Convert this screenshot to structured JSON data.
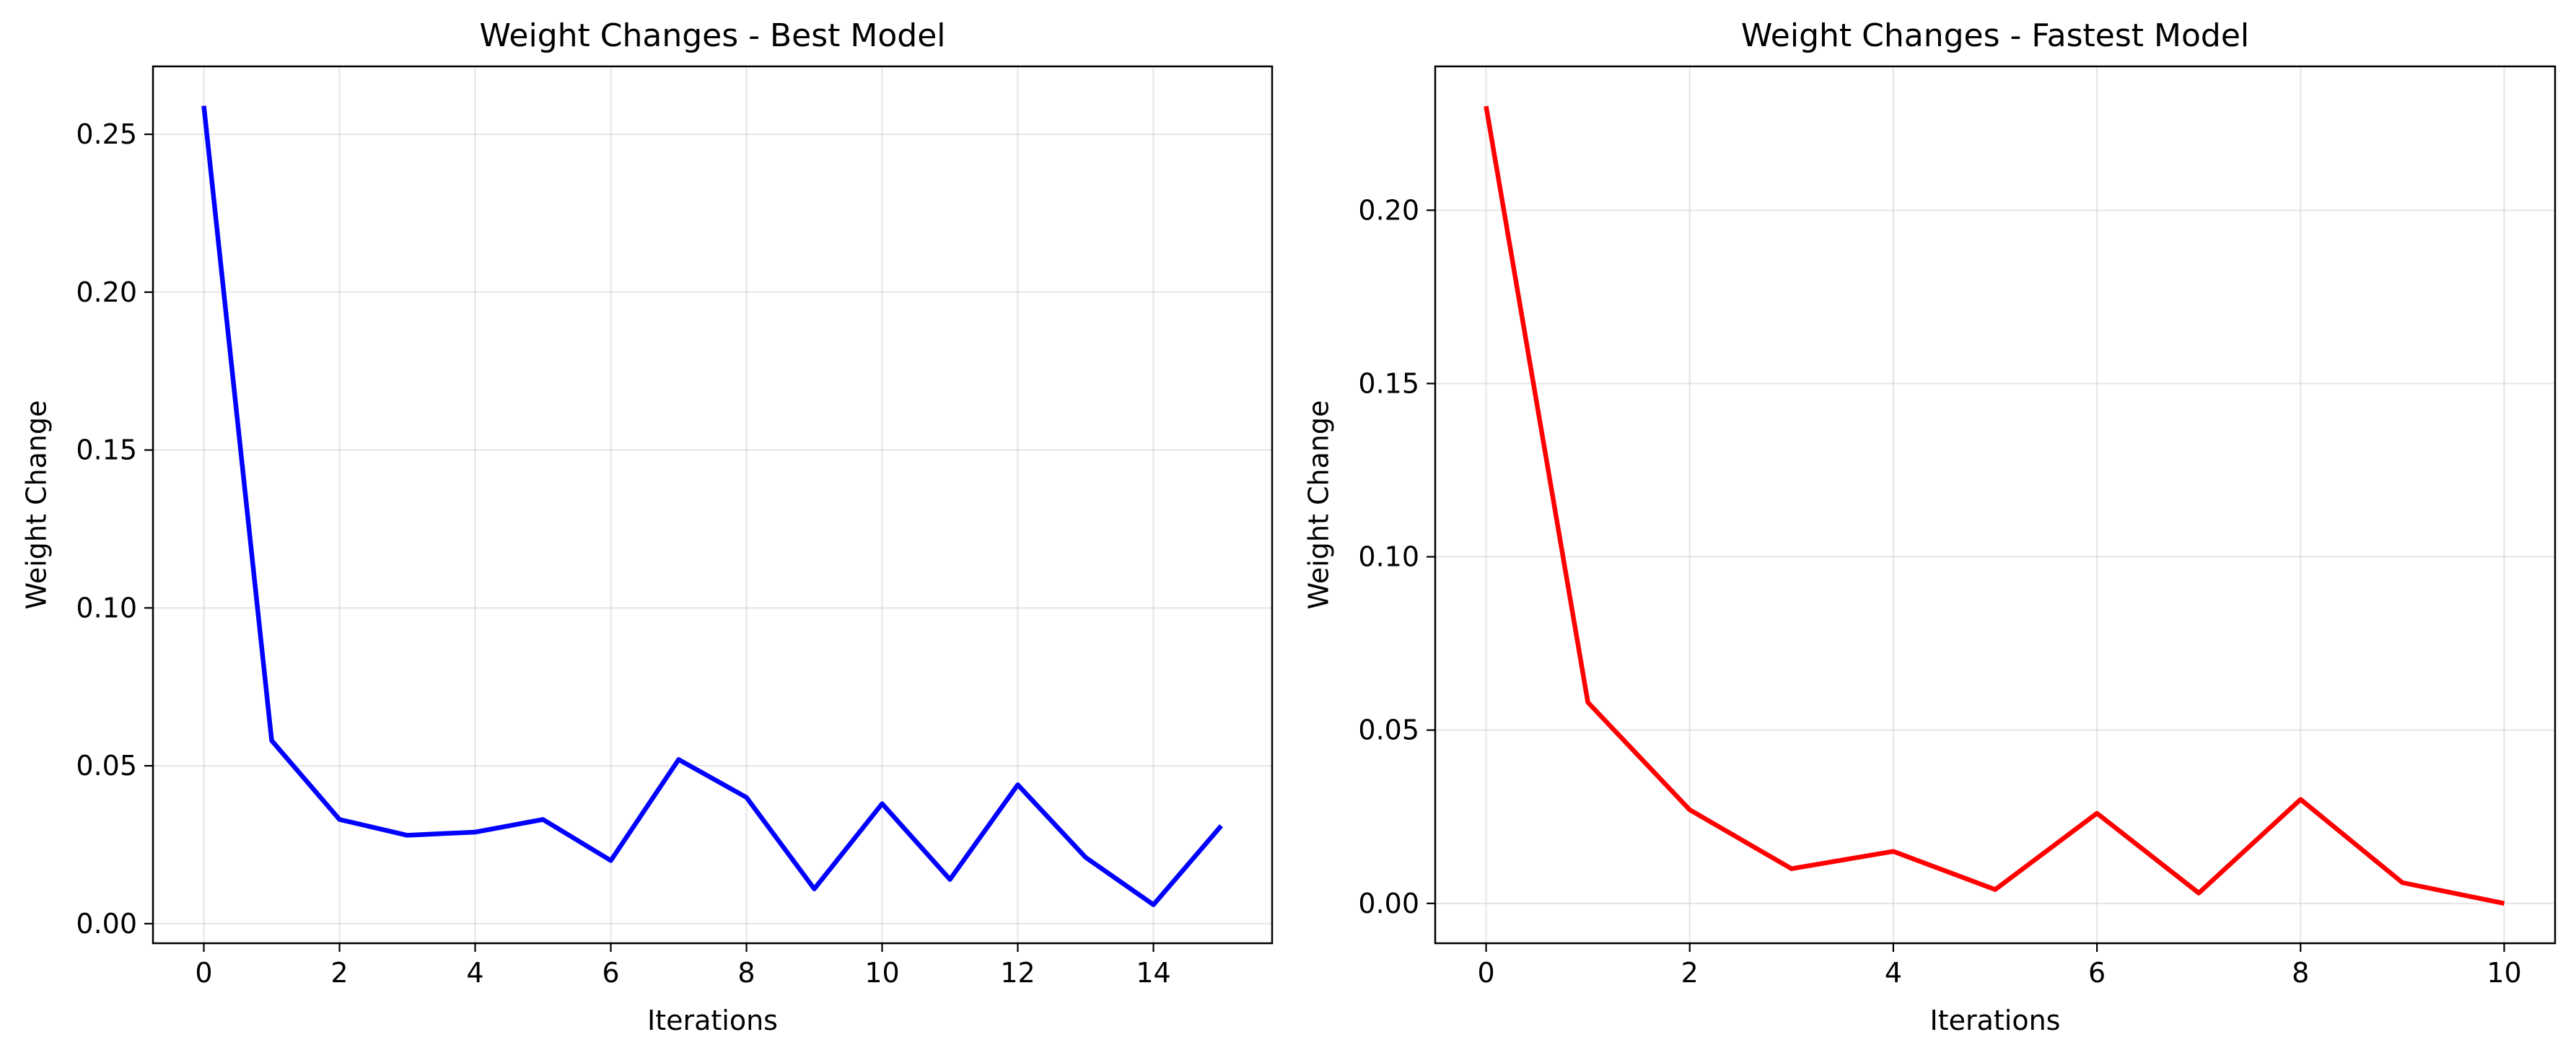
{
  "chart_data": [
    {
      "type": "line",
      "title": "Weight Changes - Best Model",
      "xlabel": "Iterations",
      "ylabel": "Weight Change",
      "xlim": [
        -0.75,
        15.75
      ],
      "ylim": [
        -0.0062,
        0.2715
      ],
      "xticks": [
        0,
        2,
        4,
        6,
        8,
        10,
        12,
        14
      ],
      "xtick_labels": [
        "0",
        "2",
        "4",
        "6",
        "8",
        "10",
        "12",
        "14"
      ],
      "yticks": [
        0.0,
        0.05,
        0.1,
        0.15,
        0.2,
        0.25
      ],
      "ytick_labels": [
        "0.00",
        "0.05",
        "0.10",
        "0.15",
        "0.20",
        "0.25"
      ],
      "grid": true,
      "series": [
        {
          "color": "#0000ff",
          "x": [
            0,
            1,
            2,
            3,
            4,
            5,
            6,
            7,
            8,
            9,
            10,
            11,
            12,
            13,
            14,
            15
          ],
          "values": [
            0.259,
            0.058,
            0.033,
            0.028,
            0.029,
            0.033,
            0.02,
            0.052,
            0.04,
            0.011,
            0.038,
            0.014,
            0.044,
            0.021,
            0.006,
            0.031
          ]
        }
      ]
    },
    {
      "type": "line",
      "title": "Weight Changes - Fastest Model",
      "xlabel": "Iterations",
      "ylabel": "Weight Change",
      "xlim": [
        -0.5,
        10.5
      ],
      "ylim": [
        -0.0115,
        0.2415
      ],
      "xticks": [
        0,
        2,
        4,
        6,
        8,
        10
      ],
      "xtick_labels": [
        "0",
        "2",
        "4",
        "6",
        "8",
        "10"
      ],
      "yticks": [
        0.0,
        0.05,
        0.1,
        0.15,
        0.2
      ],
      "ytick_labels": [
        "0.00",
        "0.05",
        "0.10",
        "0.15",
        "0.20"
      ],
      "grid": true,
      "series": [
        {
          "color": "#ff0000",
          "x": [
            0,
            1,
            2,
            3,
            4,
            5,
            6,
            7,
            8,
            9,
            10
          ],
          "values": [
            0.23,
            0.058,
            0.027,
            0.01,
            0.015,
            0.004,
            0.026,
            0.003,
            0.03,
            0.006,
            0.0
          ]
        }
      ]
    }
  ]
}
